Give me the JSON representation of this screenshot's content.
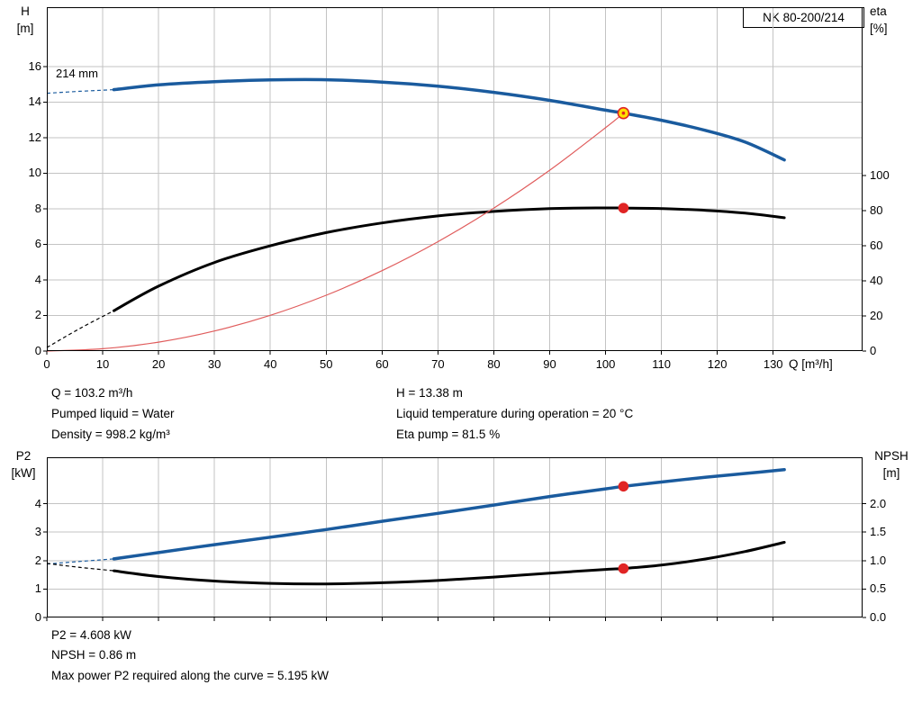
{
  "title_box": "NK 80-200/214",
  "impeller_label": "214 mm",
  "colors": {
    "curve_blue": "#1a5b9e",
    "curve_black": "#000000",
    "system_red": "#e05c5c",
    "marker_red": "#e02424",
    "marker_yellow": "#ffdf00",
    "grid": "#c3c3c3"
  },
  "info_top": {
    "left": [
      "Q = 103.2 m³/h",
      "Pumped liquid = Water",
      "Density = 998.2 kg/m³"
    ],
    "right": [
      "H = 13.38 m",
      "Liquid temperature during operation = 20 °C",
      "Eta pump = 81.5 %"
    ]
  },
  "info_bottom": [
    "P2 = 4.608 kW",
    "NPSH = 0.86 m",
    "Max power P2 required along the curve = 5.195 kW"
  ],
  "chart_data": [
    {
      "type": "line",
      "name": "head-efficiency-chart",
      "title": "NK 80-200/214",
      "xlabel": "Q [m³/h]",
      "xlim": [
        0,
        146
      ],
      "x_ticks": [
        0,
        10,
        20,
        30,
        40,
        50,
        60,
        70,
        80,
        90,
        100,
        110,
        120,
        130
      ],
      "left_axis": {
        "title": [
          "H",
          "[m]"
        ],
        "lim": [
          0,
          19.34
        ],
        "ticks": [
          0,
          2,
          4,
          6,
          8,
          10,
          12,
          14,
          16
        ]
      },
      "right_axis": {
        "title": [
          "eta",
          "[%]"
        ],
        "lim": [
          0,
          196
        ],
        "ticks": [
          0,
          20,
          40,
          60,
          80,
          100
        ]
      },
      "series": [
        {
          "name": "head-curve-214mm",
          "axis": "left",
          "color_key": "curve_blue",
          "width": 3.5,
          "lead": [
            [
              0,
              14.5
            ],
            [
              6,
              14.61
            ],
            [
              12,
              14.7
            ]
          ],
          "points": [
            [
              12,
              14.7
            ],
            [
              20,
              14.97
            ],
            [
              30,
              15.15
            ],
            [
              40,
              15.25
            ],
            [
              50,
              15.26
            ],
            [
              60,
              15.13
            ],
            [
              70,
              14.9
            ],
            [
              80,
              14.55
            ],
            [
              90,
              14.1
            ],
            [
              100,
              13.55
            ],
            [
              103.2,
              13.38
            ],
            [
              110,
              12.98
            ],
            [
              118,
              12.4
            ],
            [
              125,
              11.75
            ],
            [
              132,
              10.75
            ]
          ]
        },
        {
          "name": "efficiency-curve",
          "axis": "right",
          "color_key": "curve_black",
          "width": 3,
          "lead": [
            [
              0,
              2
            ],
            [
              6,
              13
            ],
            [
              12,
              23
            ]
          ],
          "points": [
            [
              12,
              23
            ],
            [
              20,
              37
            ],
            [
              30,
              50.5
            ],
            [
              40,
              60
            ],
            [
              50,
              67.5
            ],
            [
              60,
              73
            ],
            [
              70,
              77
            ],
            [
              80,
              79.6
            ],
            [
              90,
              81.2
            ],
            [
              100,
              81.6
            ],
            [
              103.2,
              81.5
            ],
            [
              110,
              81.2
            ],
            [
              118,
              80.2
            ],
            [
              125,
              78.6
            ],
            [
              132,
              76
            ]
          ]
        },
        {
          "name": "system-curve",
          "axis": "left",
          "color_key": "system_red",
          "width": 1.2,
          "points": [
            [
              0,
              0
            ],
            [
              10,
              0.13
            ],
            [
              20,
              0.5
            ],
            [
              30,
              1.13
            ],
            [
              40,
              2.01
            ],
            [
              50,
              3.14
            ],
            [
              60,
              4.52
            ],
            [
              70,
              6.15
            ],
            [
              80,
              8.04
            ],
            [
              90,
              10.17
            ],
            [
              100,
              12.56
            ],
            [
              103.2,
              13.38
            ]
          ]
        }
      ],
      "markers": [
        {
          "name": "duty-point-head",
          "axis": "left",
          "x": 103.2,
          "y": 13.38,
          "fill_key": "marker_yellow",
          "stroke_key": "marker_red",
          "r": 6,
          "center_dot": true
        },
        {
          "name": "duty-point-eta",
          "axis": "right",
          "x": 103.2,
          "y": 81.5,
          "fill_key": "marker_red",
          "stroke_key": "marker_red",
          "r": 5,
          "center_dot": false
        }
      ]
    },
    {
      "type": "line",
      "name": "power-npsh-chart",
      "xlabel": "",
      "xlim": [
        0,
        146
      ],
      "x_ticks": [
        0,
        10,
        20,
        30,
        40,
        50,
        60,
        70,
        80,
        90,
        100,
        110,
        120,
        130
      ],
      "left_axis": {
        "title": [
          "P2",
          "[kW]"
        ],
        "lim": [
          0,
          5.63
        ],
        "ticks": [
          0,
          1,
          2,
          3,
          4
        ]
      },
      "right_axis": {
        "title": [
          "NPSH",
          "[m]"
        ],
        "lim": [
          0,
          2.815
        ],
        "ticks": [
          0,
          0.5,
          1,
          1.5,
          2
        ],
        "decimals": 1
      },
      "series": [
        {
          "name": "p2-curve",
          "axis": "left",
          "color_key": "curve_blue",
          "width": 3.5,
          "lead": [
            [
              0,
              1.88
            ],
            [
              6,
              1.97
            ],
            [
              12,
              2.06
            ]
          ],
          "points": [
            [
              12,
              2.06
            ],
            [
              20,
              2.28
            ],
            [
              30,
              2.56
            ],
            [
              40,
              2.82
            ],
            [
              50,
              3.09
            ],
            [
              60,
              3.38
            ],
            [
              70,
              3.66
            ],
            [
              80,
              3.95
            ],
            [
              90,
              4.25
            ],
            [
              100,
              4.52
            ],
            [
              103.2,
              4.608
            ],
            [
              110,
              4.76
            ],
            [
              118,
              4.93
            ],
            [
              125,
              5.06
            ],
            [
              132,
              5.195
            ]
          ]
        },
        {
          "name": "npsh-curve",
          "axis": "right",
          "color_key": "curve_black",
          "width": 3,
          "lead": [
            [
              0,
              0.95
            ],
            [
              6,
              0.88
            ],
            [
              12,
              0.82
            ]
          ],
          "points": [
            [
              12,
              0.82
            ],
            [
              20,
              0.72
            ],
            [
              30,
              0.64
            ],
            [
              40,
              0.6
            ],
            [
              50,
              0.59
            ],
            [
              60,
              0.61
            ],
            [
              70,
              0.65
            ],
            [
              80,
              0.71
            ],
            [
              90,
              0.78
            ],
            [
              100,
              0.845
            ],
            [
              103.2,
              0.86
            ],
            [
              110,
              0.92
            ],
            [
              118,
              1.03
            ],
            [
              125,
              1.16
            ],
            [
              132,
              1.32
            ]
          ]
        }
      ],
      "markers": [
        {
          "name": "duty-point-p2",
          "axis": "left",
          "x": 103.2,
          "y": 4.608,
          "fill_key": "marker_red",
          "stroke_key": "marker_red",
          "r": 5,
          "center_dot": false
        },
        {
          "name": "duty-point-npsh",
          "axis": "right",
          "x": 103.2,
          "y": 0.86,
          "fill_key": "marker_red",
          "stroke_key": "marker_red",
          "r": 5,
          "center_dot": false
        }
      ]
    }
  ]
}
